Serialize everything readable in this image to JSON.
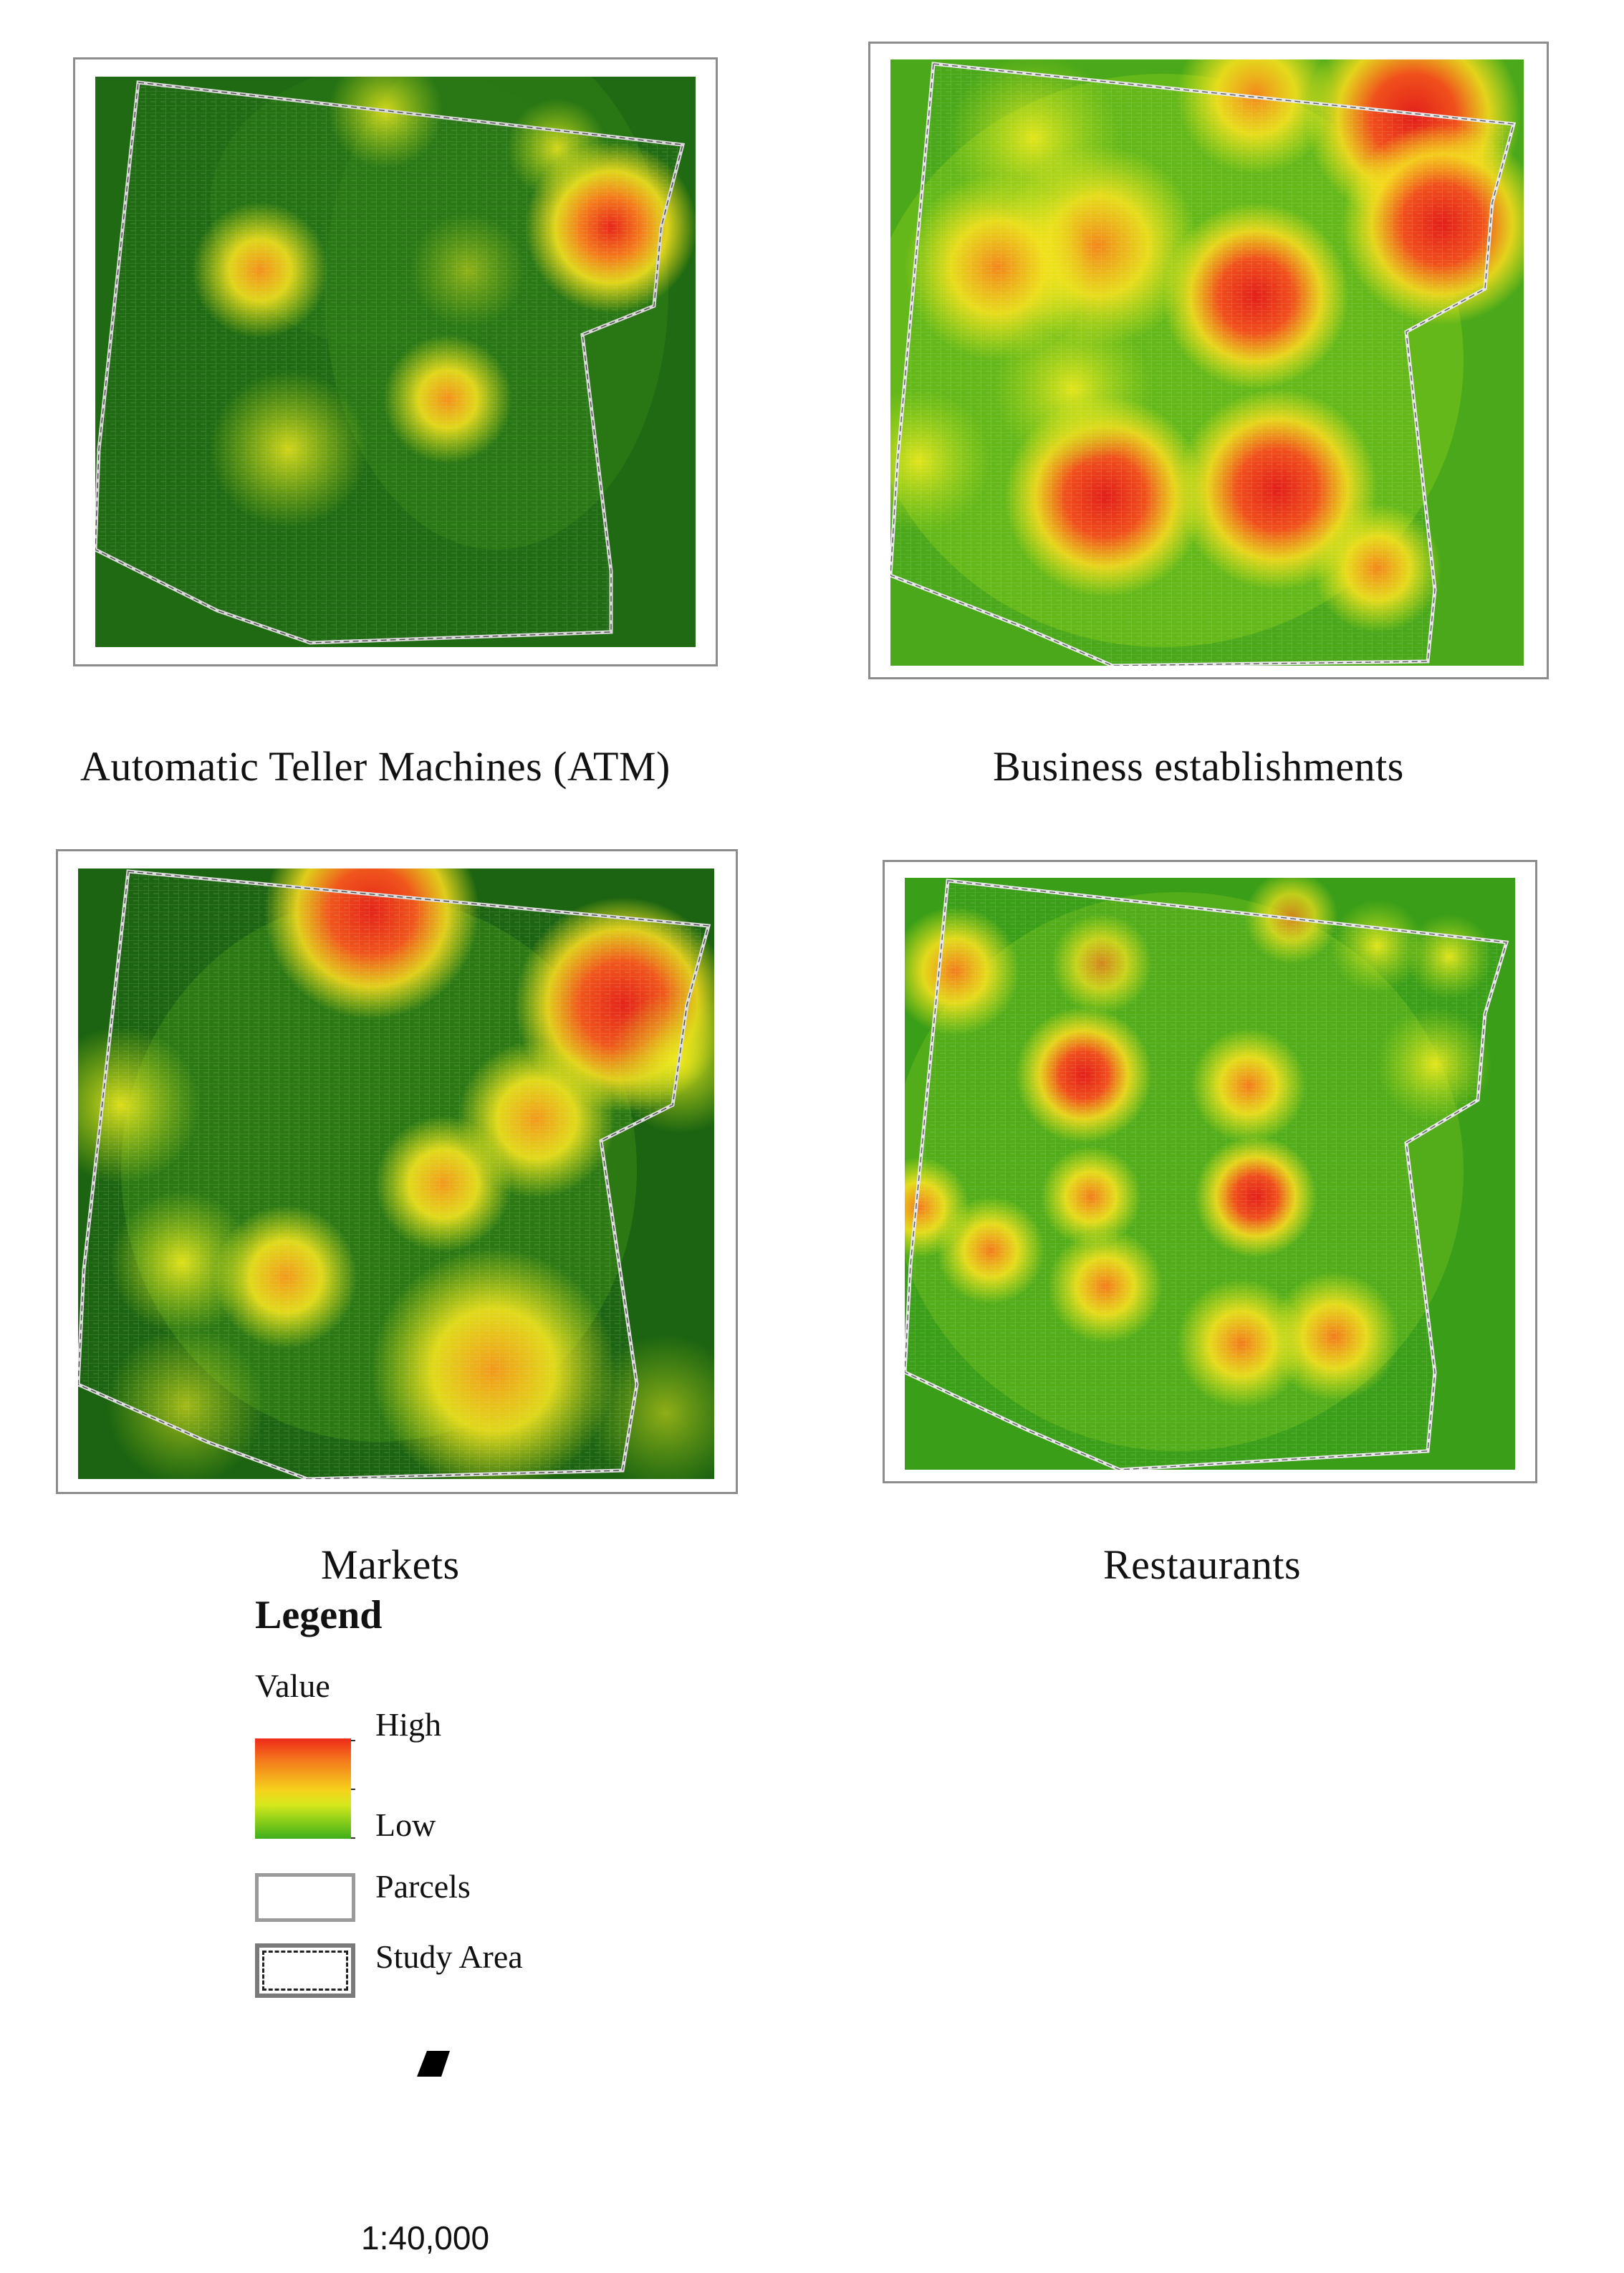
{
  "maps": [
    {
      "id": "atm",
      "title": "Automatic Teller Machines (ATM)"
    },
    {
      "id": "business",
      "title": "Business establishments"
    },
    {
      "id": "markets",
      "title": "Markets"
    },
    {
      "id": "restaurants",
      "title": "Restaurants"
    }
  ],
  "legend": {
    "title": "Legend",
    "value_label": "Value",
    "high_label": "High",
    "low_label": "Low",
    "parcels_label": "Parcels",
    "study_area_label": "Study Area",
    "colors": {
      "high": "#ee2a1a",
      "mid": "#f5d31c",
      "low": "#3fae1b"
    }
  },
  "scale": "1:40,000"
}
